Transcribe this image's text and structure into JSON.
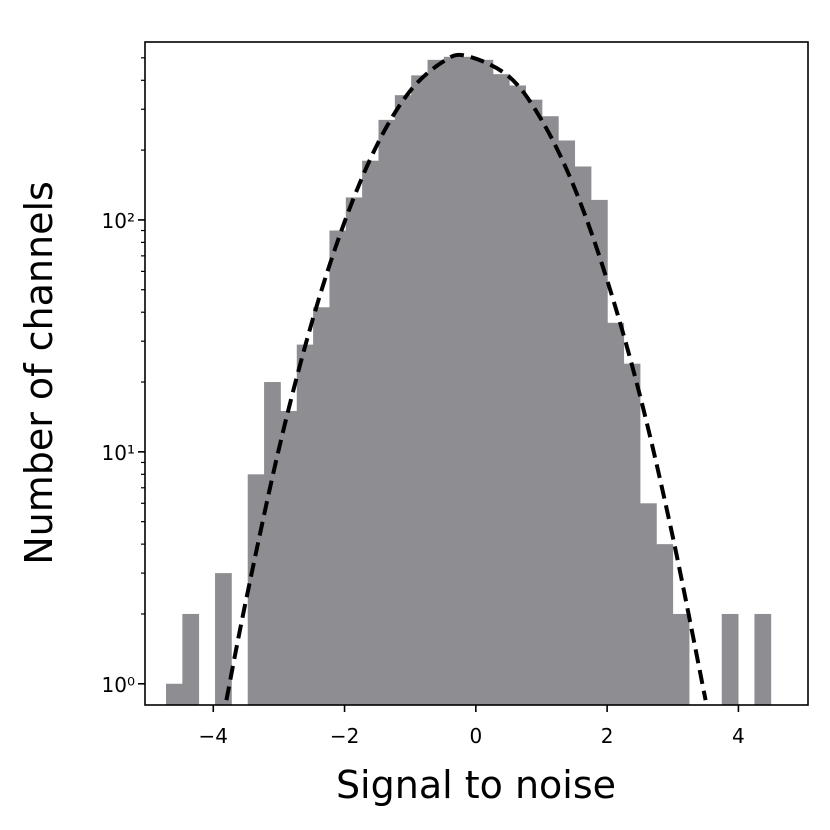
{
  "chart_data": {
    "type": "histogram",
    "xlabel": "Signal to noise",
    "ylabel": "Number of channels",
    "bins": [
      -4.72,
      -4.471,
      -4.222,
      -3.973,
      -3.724,
      -3.475,
      -3.226,
      -2.977,
      -2.728,
      -2.479,
      -2.23,
      -1.981,
      -1.732,
      -1.483,
      -1.234,
      -0.985,
      -0.736,
      -0.487,
      -0.238,
      0.011,
      0.26,
      0.509,
      0.758,
      1.007,
      1.256,
      1.505,
      1.754,
      2.003,
      2.252,
      2.501,
      2.75,
      2.999,
      3.248,
      3.497,
      3.746,
      3.995,
      4.244,
      4.493
    ],
    "values": [
      1,
      2,
      0,
      3,
      0,
      8,
      20,
      15,
      29,
      42,
      90,
      125,
      180,
      270,
      345,
      420,
      490,
      505,
      505,
      490,
      425,
      380,
      330,
      280,
      220,
      170,
      122,
      36,
      24,
      6,
      4,
      2,
      0,
      0,
      2,
      0,
      2
    ],
    "color": "#8e8d92",
    "fit": {
      "x": [
        -3.8,
        -3.5,
        -3,
        -2.5,
        -2,
        -1.5,
        -1,
        -0.5,
        -0.15,
        0.5,
        1,
        1.5,
        2,
        2.5,
        3,
        3.5
      ],
      "values": [
        0.85,
        2.3,
        10.3,
        36,
        98,
        212,
        360,
        481,
        510,
        416,
        270,
        138,
        55,
        17.5,
        4.3,
        0.85
      ],
      "color": "#000000",
      "dashed": true
    },
    "xlim": [
      -5.04,
      5.06
    ],
    "ylim": [
      0.81,
      585
    ],
    "ylog": true,
    "xticks": [
      {
        "value": -4,
        "label": "−4"
      },
      {
        "value": -2,
        "label": "−2"
      },
      0,
      2,
      4
    ],
    "yticks": [
      {
        "value": 1,
        "label": "10⁰"
      },
      {
        "value": 10,
        "label": "10¹"
      },
      {
        "value": 100,
        "label": "10²"
      }
    ],
    "yticks_minor": [
      2,
      3,
      4,
      5,
      6,
      7,
      8,
      9,
      20,
      30,
      40,
      50,
      60,
      70,
      80,
      90,
      200,
      300,
      400,
      500
    ]
  }
}
